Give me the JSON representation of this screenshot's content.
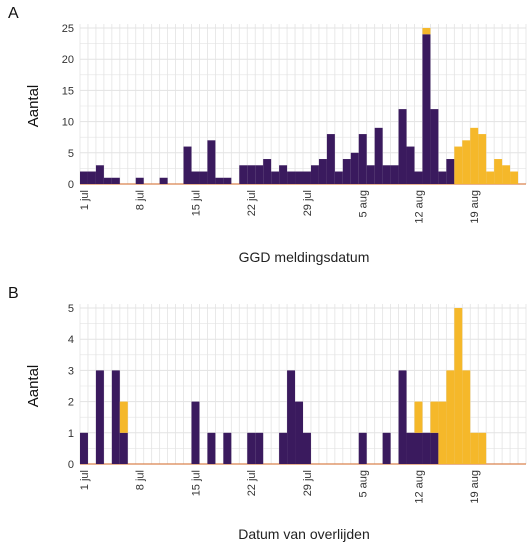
{
  "colors": {
    "primary": "#3a1a5e",
    "secondary": "#f5b82a",
    "grid": "#e3e3e3",
    "baseline": "#d9844f"
  },
  "chart_data": [
    {
      "type": "bar",
      "panel_label": "A",
      "xlabel": "GGD meldingsdatum",
      "ylabel": "Aantal",
      "ylim": [
        0,
        25
      ],
      "yticks": [
        0,
        5,
        10,
        15,
        20,
        25
      ],
      "grid": true,
      "stacked": true,
      "x_tick_labels": [
        {
          "day": 0,
          "label": "1 jul"
        },
        {
          "day": 7,
          "label": "8 jul"
        },
        {
          "day": 14,
          "label": "15 jul"
        },
        {
          "day": 21,
          "label": "22 jul"
        },
        {
          "day": 28,
          "label": "29 jul"
        },
        {
          "day": 35,
          "label": "5 aug"
        },
        {
          "day": 42,
          "label": "12 aug"
        },
        {
          "day": 49,
          "label": "19 aug"
        }
      ],
      "days": [
        0,
        1,
        2,
        3,
        4,
        5,
        6,
        7,
        8,
        9,
        10,
        11,
        12,
        13,
        14,
        15,
        16,
        17,
        18,
        19,
        20,
        21,
        22,
        23,
        24,
        25,
        26,
        27,
        28,
        29,
        30,
        31,
        32,
        33,
        34,
        35,
        36,
        37,
        38,
        39,
        40,
        41,
        42,
        43,
        44,
        45,
        46,
        47,
        48,
        49,
        50,
        51,
        52,
        53,
        54,
        55
      ],
      "series": [
        {
          "color": "#3a1a5e",
          "values": [
            2,
            2,
            3,
            1,
            1,
            0,
            0,
            1,
            0,
            0,
            1,
            0,
            0,
            6,
            2,
            2,
            7,
            1,
            1,
            0,
            3,
            3,
            3,
            4,
            2,
            3,
            2,
            2,
            2,
            3,
            4,
            8,
            2,
            4,
            5,
            8,
            3,
            9,
            3,
            3,
            12,
            6,
            2,
            24,
            12,
            2,
            4,
            0,
            0,
            0,
            0,
            0,
            0,
            0,
            0,
            0
          ]
        },
        {
          "color": "#f5b82a",
          "values": [
            0,
            0,
            0,
            0,
            0,
            0,
            0,
            0,
            0,
            0,
            0,
            0,
            0,
            0,
            0,
            0,
            0,
            0,
            0,
            0,
            0,
            0,
            0,
            0,
            0,
            0,
            0,
            0,
            0,
            0,
            0,
            0,
            0,
            0,
            0,
            0,
            0,
            0,
            0,
            0,
            0,
            0,
            0,
            1,
            0,
            0,
            0,
            6,
            7,
            9,
            8,
            2,
            4,
            3,
            2,
            0
          ]
        }
      ]
    },
    {
      "type": "bar",
      "panel_label": "B",
      "xlabel": "Datum van overlijden",
      "ylabel": "Aantal",
      "ylim": [
        0,
        5
      ],
      "yticks": [
        0,
        1,
        2,
        3,
        4,
        5
      ],
      "grid": true,
      "stacked": true,
      "x_tick_labels": [
        {
          "day": 0,
          "label": "1 jul"
        },
        {
          "day": 7,
          "label": "8 jul"
        },
        {
          "day": 14,
          "label": "15 jul"
        },
        {
          "day": 21,
          "label": "22 jul"
        },
        {
          "day": 28,
          "label": "29 jul"
        },
        {
          "day": 35,
          "label": "5 aug"
        },
        {
          "day": 42,
          "label": "12 aug"
        },
        {
          "day": 49,
          "label": "19 aug"
        }
      ],
      "days": [
        0,
        1,
        2,
        3,
        4,
        5,
        6,
        7,
        8,
        9,
        10,
        11,
        12,
        13,
        14,
        15,
        16,
        17,
        18,
        19,
        20,
        21,
        22,
        23,
        24,
        25,
        26,
        27,
        28,
        29,
        30,
        31,
        32,
        33,
        34,
        35,
        36,
        37,
        38,
        39,
        40,
        41,
        42,
        43,
        44,
        45,
        46,
        47,
        48,
        49,
        50,
        51,
        52,
        53,
        54,
        55
      ],
      "series": [
        {
          "color": "#3a1a5e",
          "values": [
            1,
            0,
            3,
            0,
            3,
            1,
            0,
            0,
            0,
            0,
            0,
            0,
            0,
            0,
            2,
            0,
            1,
            0,
            1,
            0,
            0,
            1,
            1,
            0,
            0,
            1,
            3,
            2,
            1,
            0,
            0,
            0,
            0,
            0,
            0,
            1,
            0,
            0,
            1,
            0,
            3,
            1,
            1,
            1,
            1,
            0,
            0,
            0,
            0,
            0,
            0,
            0,
            0,
            0,
            0,
            0
          ]
        },
        {
          "color": "#f5b82a",
          "values": [
            0,
            0,
            0,
            0,
            0,
            1,
            0,
            0,
            0,
            0,
            0,
            0,
            0,
            0,
            0,
            0,
            0,
            0,
            0,
            0,
            0,
            0,
            0,
            0,
            0,
            0,
            0,
            0,
            0,
            0,
            0,
            0,
            0,
            0,
            0,
            0,
            0,
            0,
            0,
            0,
            0,
            0,
            1,
            0,
            1,
            2,
            3,
            5,
            3,
            1,
            1,
            0,
            0,
            0,
            0,
            0
          ]
        }
      ]
    }
  ]
}
